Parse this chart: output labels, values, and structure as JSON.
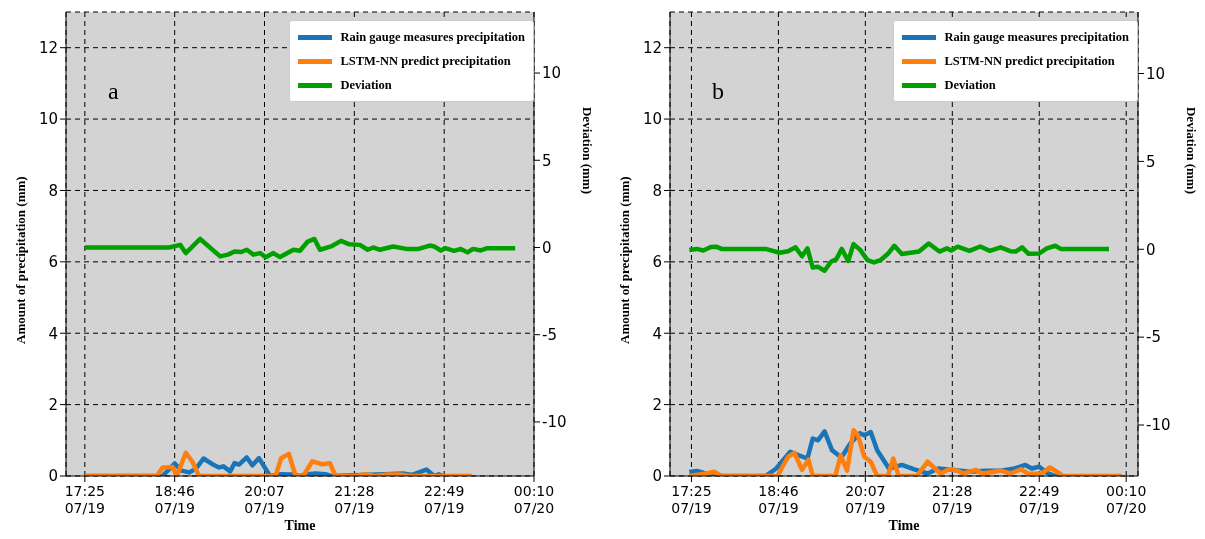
{
  "chart_data": [
    {
      "type": "line",
      "annotations": [
        "a"
      ],
      "xlabel": "Time",
      "ylabel": "Amount of precipitation (mm)",
      "y2label": "Deviation (mm)",
      "xlim": [
        "--07-19T17:08",
        "--07-20T00:10"
      ],
      "xticks": [
        {
          "value": "--07-19T17:25",
          "label": "17:25\n07/19"
        },
        {
          "value": "--07-19T18:46",
          "label": "18:46\n07/19"
        },
        {
          "value": "--07-19T20:07",
          "label": "20:07\n07/19"
        },
        {
          "value": "--07-19T21:28",
          "label": "21:28\n07/19"
        },
        {
          "value": "--07-19T22:49",
          "label": "22:49\n07/19"
        },
        {
          "value": "--07-20T00:10",
          "label": "00:10\n07/20"
        }
      ],
      "ylim": [
        0,
        13
      ],
      "yticks": [
        0,
        2,
        4,
        6,
        8,
        10,
        12
      ],
      "y2lim": [
        -13.1,
        13.5
      ],
      "y2ticks": [
        -10,
        -5,
        0,
        5,
        10
      ],
      "grid": true,
      "legend": "top right",
      "series": [
        {
          "name": "Rain gauge measures precipitation",
          "color": "#1a75b8",
          "x": [
            "--07-19T17:25",
            "--07-19T18:35",
            "--07-19T18:46",
            "--07-19T18:52",
            "--07-19T18:59",
            "--07-19T19:05",
            "--07-19T19:12",
            "--07-19T19:20",
            "--07-19T19:26",
            "--07-19T19:30",
            "--07-19T19:36",
            "--07-19T19:40",
            "--07-19T19:44",
            "--07-19T19:51",
            "--07-19T19:56",
            "--07-19T20:02",
            "--07-19T20:07",
            "--07-19T20:12",
            "--07-19T20:22",
            "--07-19T20:31",
            "--07-19T20:39",
            "--07-19T20:46",
            "--07-19T20:53",
            "--07-19T21:02",
            "--07-19T21:07",
            "--07-19T21:55",
            "--07-19T22:12",
            "--07-19T22:20",
            "--07-19T22:33",
            "--07-19T22:40",
            "--07-19T22:44",
            "--07-19T22:48"
          ],
          "values": [
            0,
            0,
            0.35,
            0.15,
            0.1,
            0.2,
            0.49,
            0.33,
            0.24,
            0.27,
            0.13,
            0.36,
            0.32,
            0.52,
            0.3,
            0.5,
            0.25,
            0,
            0.05,
            0.04,
            0,
            0.05,
            0.07,
            0.05,
            0,
            0.05,
            0.07,
            0.03,
            0.18,
            0,
            0.05,
            0
          ]
        },
        {
          "name": "LSTM-NN predict precipitation",
          "color": "#ff7f0e",
          "x": [
            "--07-19T17:25",
            "--07-19T18:30",
            "--07-19T18:35",
            "--07-19T18:44",
            "--07-19T18:48",
            "--07-19T18:56",
            "--07-19T19:02",
            "--07-19T19:08",
            "--07-19T20:17",
            "--07-19T20:22",
            "--07-19T20:29",
            "--07-19T20:35",
            "--07-19T20:42",
            "--07-19T20:50",
            "--07-19T20:59",
            "--07-19T21:06",
            "--07-19T21:11",
            "--07-19T21:30",
            "--07-19T21:38",
            "--07-19T21:47",
            "--07-19T21:58",
            "--07-19T22:09",
            "--07-19T22:18",
            "--07-19T23:14"
          ],
          "values": [
            0,
            0,
            0.23,
            0.25,
            0,
            0.65,
            0.4,
            0,
            0,
            0.5,
            0.62,
            0,
            0,
            0.41,
            0.33,
            0.36,
            0,
            0,
            0.05,
            0,
            0.04,
            0.04,
            0,
            0
          ]
        },
        {
          "name": "Deviation",
          "color": "#00a000",
          "axis": "y2",
          "x": [
            "--07-19T17:25",
            "--07-19T18:41",
            "--07-19T18:51",
            "--07-19T18:56",
            "--07-19T19:09",
            "--07-19T19:27",
            "--07-19T19:34",
            "--07-19T19:40",
            "--07-19T19:46",
            "--07-19T19:51",
            "--07-19T19:57",
            "--07-19T20:03",
            "--07-19T20:08",
            "--07-19T20:15",
            "--07-19T20:21",
            "--07-19T20:33",
            "--07-19T20:39",
            "--07-19T20:46",
            "--07-19T20:52",
            "--07-19T20:57",
            "--07-19T21:07",
            "--07-19T21:16",
            "--07-19T21:23",
            "--07-19T21:33",
            "--07-19T21:40",
            "--07-19T21:45",
            "--07-19T21:51",
            "--07-19T22:03",
            "--07-19T22:15",
            "--07-19T22:26",
            "--07-19T22:36",
            "--07-19T22:40",
            "--07-19T22:46",
            "--07-19T22:50",
            "--07-19T22:58",
            "--07-19T23:04",
            "--07-19T23:10",
            "--07-19T23:15",
            "--07-19T23:22",
            "--07-19T23:28",
            "--07-19T23:53"
          ],
          "values": [
            0,
            0,
            0.15,
            -0.32,
            0.49,
            -0.51,
            -0.41,
            -0.23,
            -0.26,
            -0.13,
            -0.41,
            -0.32,
            -0.56,
            -0.32,
            -0.55,
            -0.13,
            -0.19,
            0.34,
            0.49,
            -0.13,
            0.06,
            0.38,
            0.19,
            0.15,
            -0.13,
            0,
            -0.13,
            0.06,
            -0.08,
            -0.08,
            0.11,
            0.06,
            -0.17,
            -0.04,
            -0.19,
            -0.08,
            -0.28,
            -0.08,
            -0.17,
            -0.04,
            -0.04
          ]
        }
      ]
    },
    {
      "type": "line",
      "annotations": [
        "b"
      ],
      "xlabel": "Time",
      "ylabel": "Amount of precipitation (mm)",
      "y2label": "Deviation (mm)",
      "xlim": [
        "--07-19T17:05",
        "--07-20T00:21"
      ],
      "xticks": [
        {
          "value": "--07-19T17:25",
          "label": "17:25\n07/19"
        },
        {
          "value": "--07-19T18:46",
          "label": "18:46\n07/19"
        },
        {
          "value": "--07-19T20:07",
          "label": "20:07\n07/19"
        },
        {
          "value": "--07-19T21:28",
          "label": "21:28\n07/19"
        },
        {
          "value": "--07-19T22:49",
          "label": "22:49\n07/19"
        },
        {
          "value": "--07-20T00:10",
          "label": "00:10\n07/20"
        }
      ],
      "ylim": [
        0,
        13
      ],
      "yticks": [
        0,
        2,
        4,
        6,
        8,
        10,
        12
      ],
      "y2lim": [
        -12.9,
        13.5
      ],
      "y2ticks": [
        -10,
        -5,
        0,
        5,
        10
      ],
      "grid": true,
      "legend": "top right",
      "series": [
        {
          "name": "Rain gauge measures precipitation",
          "color": "#1a75b8",
          "x": [
            "--07-19T17:23",
            "--07-19T17:30",
            "--07-19T17:36",
            "--07-19T17:43",
            "--07-19T18:34",
            "--07-19T18:44",
            "--07-19T18:57",
            "--07-19T19:05",
            "--07-19T19:13",
            "--07-19T19:18",
            "--07-19T19:23",
            "--07-19T19:29",
            "--07-19T19:36",
            "--07-19T19:42",
            "--07-19T19:46",
            "--07-19T19:53",
            "--07-19T20:02",
            "--07-19T20:06",
            "--07-19T20:12",
            "--07-19T20:18",
            "--07-19T20:29",
            "--07-19T20:41",
            "--07-19T20:52",
            "--07-19T21:05",
            "--07-19T21:15",
            "--07-19T21:30",
            "--07-19T21:44",
            "--07-19T21:59",
            "--07-19T22:13",
            "--07-19T22:26",
            "--07-19T22:36",
            "--07-19T22:42",
            "--07-19T22:49",
            "--07-19T22:56",
            "--07-19T23:04",
            "--07-19T23:08"
          ],
          "values": [
            0.11,
            0.14,
            0.09,
            0,
            0,
            0.21,
            0.68,
            0.58,
            0.49,
            1.05,
            1.0,
            1.25,
            0.72,
            0.58,
            0.58,
            0.91,
            1.2,
            1.14,
            1.23,
            0.72,
            0.21,
            0.31,
            0.19,
            0.07,
            0.21,
            0.17,
            0.12,
            0.15,
            0.15,
            0.21,
            0.31,
            0.21,
            0.26,
            0.09,
            0,
            0
          ]
        },
        {
          "name": "LSTM-NN predict precipitation",
          "color": "#ff7f0e",
          "x": [
            "--07-19T17:23",
            "--07-19T17:39",
            "--07-19T17:46",
            "--07-19T17:53",
            "--07-19T18:45",
            "--07-19T18:55",
            "--07-19T19:01",
            "--07-19T19:08",
            "--07-19T19:14",
            "--07-19T19:18",
            "--07-19T19:39",
            "--07-19T19:44",
            "--07-19T19:50",
            "--07-19T19:56",
            "--07-19T20:00",
            "--07-19T20:06",
            "--07-19T20:12",
            "--07-19T20:18",
            "--07-19T20:28",
            "--07-19T20:33",
            "--07-19T20:38",
            "--07-19T20:55",
            "--07-19T21:05",
            "--07-19T21:17",
            "--07-19T21:25",
            "--07-19T21:33",
            "--07-19T21:38",
            "--07-19T21:50",
            "--07-19T21:56",
            "--07-19T22:07",
            "--07-19T22:13",
            "--07-19T22:22",
            "--07-19T22:32",
            "--07-19T22:39",
            "--07-19T22:51",
            "--07-19T22:59",
            "--07-19T23:08",
            "--07-19T23:11",
            "--07-20T00:06"
          ],
          "values": [
            0,
            0.07,
            0.12,
            0,
            0,
            0.54,
            0.65,
            0.17,
            0.46,
            0,
            0,
            0.58,
            0.15,
            1.28,
            1.14,
            0.54,
            0.4,
            0,
            0,
            0.49,
            0,
            0,
            0.4,
            0.07,
            0.19,
            0.15,
            0.07,
            0.17,
            0.07,
            0.12,
            0.15,
            0.07,
            0.19,
            0.06,
            0.07,
            0.24,
            0.07,
            0,
            0
          ]
        },
        {
          "name": "Deviation",
          "color": "#00a000",
          "axis": "y2",
          "x": [
            "--07-19T17:23",
            "--07-19T17:30",
            "--07-19T17:36",
            "--07-19T17:43",
            "--07-19T17:48",
            "--07-19T17:53",
            "--07-19T18:34",
            "--07-19T18:47",
            "--07-19T18:55",
            "--07-19T19:02",
            "--07-19T19:08",
            "--07-19T19:13",
            "--07-19T19:18",
            "--07-19T19:23",
            "--07-19T19:29",
            "--07-19T19:35",
            "--07-19T19:40",
            "--07-19T19:45",
            "--07-19T19:51",
            "--07-19T19:56",
            "--07-19T20:02",
            "--07-19T20:09",
            "--07-19T20:15",
            "--07-19T20:21",
            "--07-19T20:28",
            "--07-19T20:34",
            "--07-19T20:41",
            "--07-19T20:49",
            "--07-19T20:57",
            "--07-19T21:06",
            "--07-19T21:16",
            "--07-19T21:23",
            "--07-19T21:27",
            "--07-19T21:33",
            "--07-19T21:44",
            "--07-19T21:54",
            "--07-19T22:03",
            "--07-19T22:13",
            "--07-19T22:22",
            "--07-19T22:27",
            "--07-19T22:33",
            "--07-19T22:39",
            "--07-19T22:49",
            "--07-19T22:56",
            "--07-19T23:04",
            "--07-19T23:09",
            "--07-19T23:54"
          ],
          "values": [
            -0.04,
            0.02,
            -0.07,
            0.13,
            0.15,
            0.02,
            0.02,
            -0.2,
            -0.11,
            0.11,
            -0.4,
            0.05,
            -1.04,
            -1.0,
            -1.22,
            -0.71,
            -0.56,
            0.02,
            -0.67,
            0.29,
            -0.02,
            -0.62,
            -0.75,
            -0.62,
            -0.26,
            0.2,
            -0.27,
            -0.2,
            -0.13,
            0.33,
            -0.13,
            0.05,
            -0.07,
            0.15,
            -0.09,
            0.16,
            -0.09,
            0.11,
            -0.11,
            -0.13,
            0.11,
            -0.26,
            -0.24,
            0.05,
            0.2,
            0.02,
            0.02
          ]
        }
      ]
    }
  ]
}
